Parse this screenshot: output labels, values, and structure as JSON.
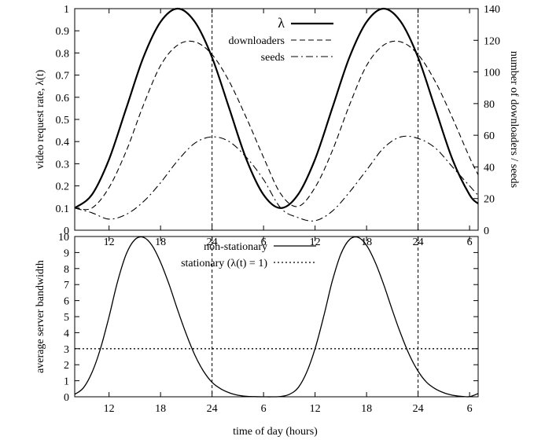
{
  "chart_data": [
    {
      "type": "line",
      "title": "",
      "xlabel": "",
      "ylabel": "video request rate, λ(t)",
      "y2label": "number of downloaders / seeds",
      "xlim": [
        8,
        55
      ],
      "ylim": [
        0,
        1
      ],
      "y2lim": [
        0,
        140
      ],
      "xticks": [
        12,
        18,
        24,
        30,
        36,
        42,
        48,
        54
      ],
      "xticklabels": [
        "12",
        "18",
        "24",
        "6",
        "12",
        "18",
        "24",
        "6"
      ],
      "yticks": [
        "0",
        "0.1",
        "0.2",
        "0.3",
        "0.4",
        "0.5",
        "0.6",
        "0.7",
        "0.8",
        "0.9",
        "1"
      ],
      "y2ticks": [
        "0",
        "20",
        "40",
        "60",
        "80",
        "100",
        "120",
        "140"
      ],
      "vlines": [
        24,
        48
      ],
      "legend_position": "top-right",
      "x": [
        8,
        10,
        12,
        14,
        16,
        18,
        20,
        22,
        24,
        26,
        28,
        30,
        32,
        34,
        36,
        38,
        40,
        42,
        44,
        46,
        48,
        50,
        52,
        54,
        55
      ],
      "series": [
        {
          "name": "λ",
          "axis": "left",
          "style": "solid",
          "values": [
            0.1,
            0.16,
            0.32,
            0.55,
            0.78,
            0.94,
            1.0,
            0.94,
            0.78,
            0.55,
            0.32,
            0.16,
            0.1,
            0.16,
            0.32,
            0.55,
            0.78,
            0.94,
            1.0,
            0.94,
            0.78,
            0.55,
            0.32,
            0.16,
            0.12
          ]
        },
        {
          "name": "downloaders",
          "axis": "right",
          "style": "dashed",
          "values": [
            14,
            14,
            27,
            50,
            79,
            104,
            117,
            119,
            111,
            94,
            71,
            46,
            23,
            15,
            27,
            50,
            79,
            104,
            117,
            119,
            111,
            94,
            71,
            46,
            35
          ]
        },
        {
          "name": "seeds",
          "axis": "right",
          "style": "dashdot",
          "values": [
            14,
            11,
            7,
            10,
            18,
            30,
            44,
            55,
            59,
            56,
            46,
            32,
            14,
            8,
            6,
            12,
            24,
            38,
            52,
            59,
            58,
            52,
            40,
            28,
            22
          ]
        }
      ]
    },
    {
      "type": "line",
      "title": "",
      "xlabel": "time of day (hours)",
      "ylabel": "average server bandwidth",
      "xlim": [
        8,
        55
      ],
      "ylim": [
        0,
        10
      ],
      "xticks": [
        12,
        18,
        24,
        30,
        36,
        42,
        48,
        54
      ],
      "xticklabels": [
        "12",
        "18",
        "24",
        "6",
        "12",
        "18",
        "24",
        "6"
      ],
      "yticks": [
        "0",
        "1",
        "2",
        "3",
        "4",
        "5",
        "6",
        "7",
        "8",
        "9",
        "10"
      ],
      "vlines": [
        24,
        48
      ],
      "legend_position": "top-center",
      "x": [
        8,
        9,
        10,
        11,
        12,
        13,
        14,
        15,
        16,
        17,
        18,
        19,
        20,
        21,
        22,
        23,
        24,
        25,
        26,
        27,
        28,
        29,
        30,
        31,
        32,
        33,
        34,
        35,
        36,
        37,
        38,
        39,
        40,
        41,
        42,
        43,
        44,
        45,
        46,
        47,
        48,
        49,
        50,
        51,
        52,
        53,
        54,
        55
      ],
      "series": [
        {
          "name": "non-stationary",
          "style": "solid",
          "values": [
            0.15,
            0.55,
            1.5,
            3.0,
            5.0,
            7.2,
            8.9,
            9.8,
            9.95,
            9.45,
            8.4,
            7.0,
            5.4,
            3.9,
            2.6,
            1.6,
            0.9,
            0.5,
            0.25,
            0.1,
            0.03,
            0.01,
            0.0,
            0.0,
            0.02,
            0.15,
            0.55,
            1.5,
            3.0,
            5.0,
            7.2,
            8.9,
            9.8,
            9.95,
            9.45,
            8.4,
            7.0,
            5.4,
            3.9,
            2.6,
            1.6,
            0.9,
            0.5,
            0.25,
            0.1,
            0.03,
            0.01,
            0.2
          ]
        },
        {
          "name": "stationary (λ(t) = 1)",
          "style": "dotted",
          "constant": 3.0
        }
      ]
    }
  ]
}
